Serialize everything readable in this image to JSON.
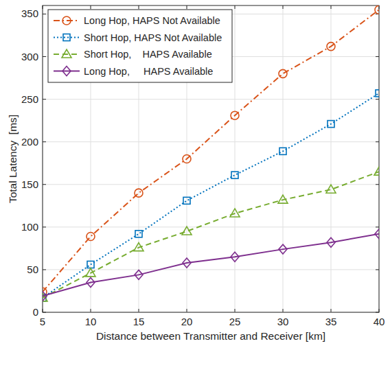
{
  "chart_data": {
    "type": "line",
    "x_label": "Distance between Transmitter and Receiver [km]",
    "y_label": "Total Latency  [ms]",
    "x": [
      5,
      10,
      15,
      20,
      25,
      30,
      35,
      40
    ],
    "xlim": [
      5,
      40
    ],
    "xticks": [
      5,
      10,
      15,
      20,
      25,
      30,
      35,
      40
    ],
    "ylim": [
      0,
      360
    ],
    "yticks": [
      0,
      50,
      100,
      150,
      200,
      250,
      300,
      350
    ],
    "grid": true,
    "legend": "upper left",
    "series": [
      {
        "name": "Long Hop, HAPS Not Available",
        "color": "#d95319",
        "marker": "circle",
        "line_style": "dashdot",
        "values": [
          24,
          89,
          140,
          180,
          231,
          280,
          312,
          355
        ]
      },
      {
        "name": "Short Hop, HAPS Not Available",
        "color": "#0072bd",
        "marker": "square",
        "line_style": "dotted",
        "values": [
          17,
          56,
          92,
          131,
          161,
          189,
          221,
          257
        ]
      },
      {
        "name": "Short Hop,    HAPS Available",
        "color": "#77ac30",
        "marker": "triangle",
        "line_style": "dashed",
        "values": [
          17,
          46,
          76,
          95,
          116,
          132,
          144,
          165
        ]
      },
      {
        "name": "Long Hop,     HAPS Available",
        "color": "#7e2f8e",
        "marker": "diamond",
        "line_style": "solid",
        "values": [
          19,
          35,
          44,
          58,
          65,
          74,
          82,
          92
        ]
      }
    ]
  }
}
